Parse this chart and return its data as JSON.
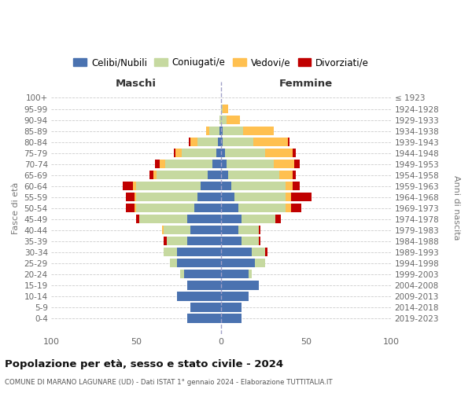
{
  "age_groups": [
    "100+",
    "95-99",
    "90-94",
    "85-89",
    "80-84",
    "75-79",
    "70-74",
    "65-69",
    "60-64",
    "55-59",
    "50-54",
    "45-49",
    "40-44",
    "35-39",
    "30-34",
    "25-29",
    "20-24",
    "15-19",
    "10-14",
    "5-9",
    "0-4"
  ],
  "birth_years": [
    "≤ 1923",
    "1924-1928",
    "1929-1933",
    "1934-1938",
    "1939-1943",
    "1944-1948",
    "1949-1953",
    "1954-1958",
    "1959-1963",
    "1964-1968",
    "1969-1973",
    "1974-1978",
    "1979-1983",
    "1984-1988",
    "1989-1993",
    "1994-1998",
    "1999-2003",
    "2004-2008",
    "2009-2013",
    "2014-2018",
    "2019-2023"
  ],
  "colors": {
    "celibi": "#4a72b0",
    "coniugati": "#c6d9a0",
    "vedovi": "#ffc050",
    "divorziati": "#c00000"
  },
  "maschi": {
    "celibi": [
      0,
      0,
      0,
      1,
      2,
      3,
      5,
      8,
      12,
      14,
      16,
      20,
      18,
      20,
      26,
      26,
      22,
      20,
      26,
      18,
      20
    ],
    "coniugati": [
      0,
      0,
      1,
      6,
      12,
      20,
      28,
      30,
      38,
      36,
      34,
      28,
      16,
      12,
      8,
      4,
      2,
      0,
      0,
      0,
      0
    ],
    "vedovi": [
      0,
      0,
      0,
      2,
      4,
      4,
      3,
      2,
      2,
      1,
      1,
      0,
      1,
      0,
      0,
      0,
      0,
      0,
      0,
      0,
      0
    ],
    "divorziati": [
      0,
      0,
      0,
      0,
      1,
      1,
      3,
      2,
      6,
      5,
      5,
      2,
      0,
      2,
      0,
      0,
      0,
      0,
      0,
      0,
      0
    ]
  },
  "femmine": {
    "celibi": [
      0,
      0,
      0,
      1,
      1,
      2,
      3,
      4,
      6,
      8,
      10,
      12,
      10,
      12,
      18,
      20,
      16,
      22,
      16,
      12,
      12
    ],
    "coniugati": [
      0,
      1,
      3,
      12,
      18,
      24,
      28,
      30,
      32,
      30,
      28,
      20,
      12,
      10,
      8,
      6,
      2,
      0,
      0,
      0,
      0
    ],
    "vedovi": [
      0,
      3,
      8,
      18,
      20,
      16,
      12,
      8,
      4,
      3,
      3,
      0,
      0,
      0,
      0,
      0,
      0,
      0,
      0,
      0,
      0
    ],
    "divorziati": [
      0,
      0,
      0,
      0,
      1,
      2,
      3,
      2,
      4,
      12,
      6,
      3,
      1,
      1,
      1,
      0,
      0,
      0,
      0,
      0,
      0
    ]
  },
  "xlim": 100,
  "title": "Popolazione per età, sesso e stato civile - 2024",
  "subtitle": "COMUNE DI MARANO LAGUNARE (UD) - Dati ISTAT 1° gennaio 2024 - Elaborazione TUTTITALIA.IT",
  "ylabel_left": "Fasce di età",
  "ylabel_right": "Anni di nascita",
  "xlabel_maschi": "Maschi",
  "xlabel_femmine": "Femmine",
  "legend_labels": [
    "Celibi/Nubili",
    "Coniugati/e",
    "Vedovi/e",
    "Divorziati/e"
  ],
  "background_color": "#ffffff",
  "grid_color": "#cccccc"
}
